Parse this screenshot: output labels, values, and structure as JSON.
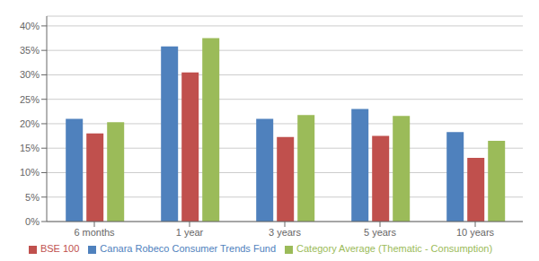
{
  "chart_data": {
    "type": "bar",
    "categories": [
      "6 months",
      "1 year",
      "3 years",
      "5 years",
      "10 years"
    ],
    "series": [
      {
        "name": "Canara Robeco Consumer Trends Fund",
        "color": "#4F81BD",
        "values": [
          21.0,
          35.8,
          21.0,
          23.0,
          18.3
        ]
      },
      {
        "name": "BSE 100",
        "color": "#C0504D",
        "values": [
          18.0,
          30.5,
          17.3,
          17.5,
          13.0
        ]
      },
      {
        "name": "Category Average (Thematic - Consumption)",
        "color": "#9BBB59",
        "values": [
          20.3,
          37.5,
          21.8,
          21.6,
          16.5
        ]
      }
    ],
    "ylim": [
      0,
      42
    ],
    "yticks": [
      {
        "value": 0,
        "label": "0%"
      },
      {
        "value": 5,
        "label": "5%"
      },
      {
        "value": 10,
        "label": "10%"
      },
      {
        "value": 15,
        "label": "15%"
      },
      {
        "value": 20,
        "label": "20%"
      },
      {
        "value": 25,
        "label": "25%"
      },
      {
        "value": 30,
        "label": "30%"
      },
      {
        "value": 35,
        "label": "35%"
      },
      {
        "value": 40,
        "label": "40%"
      }
    ],
    "grid": true,
    "legend": "bottom"
  }
}
